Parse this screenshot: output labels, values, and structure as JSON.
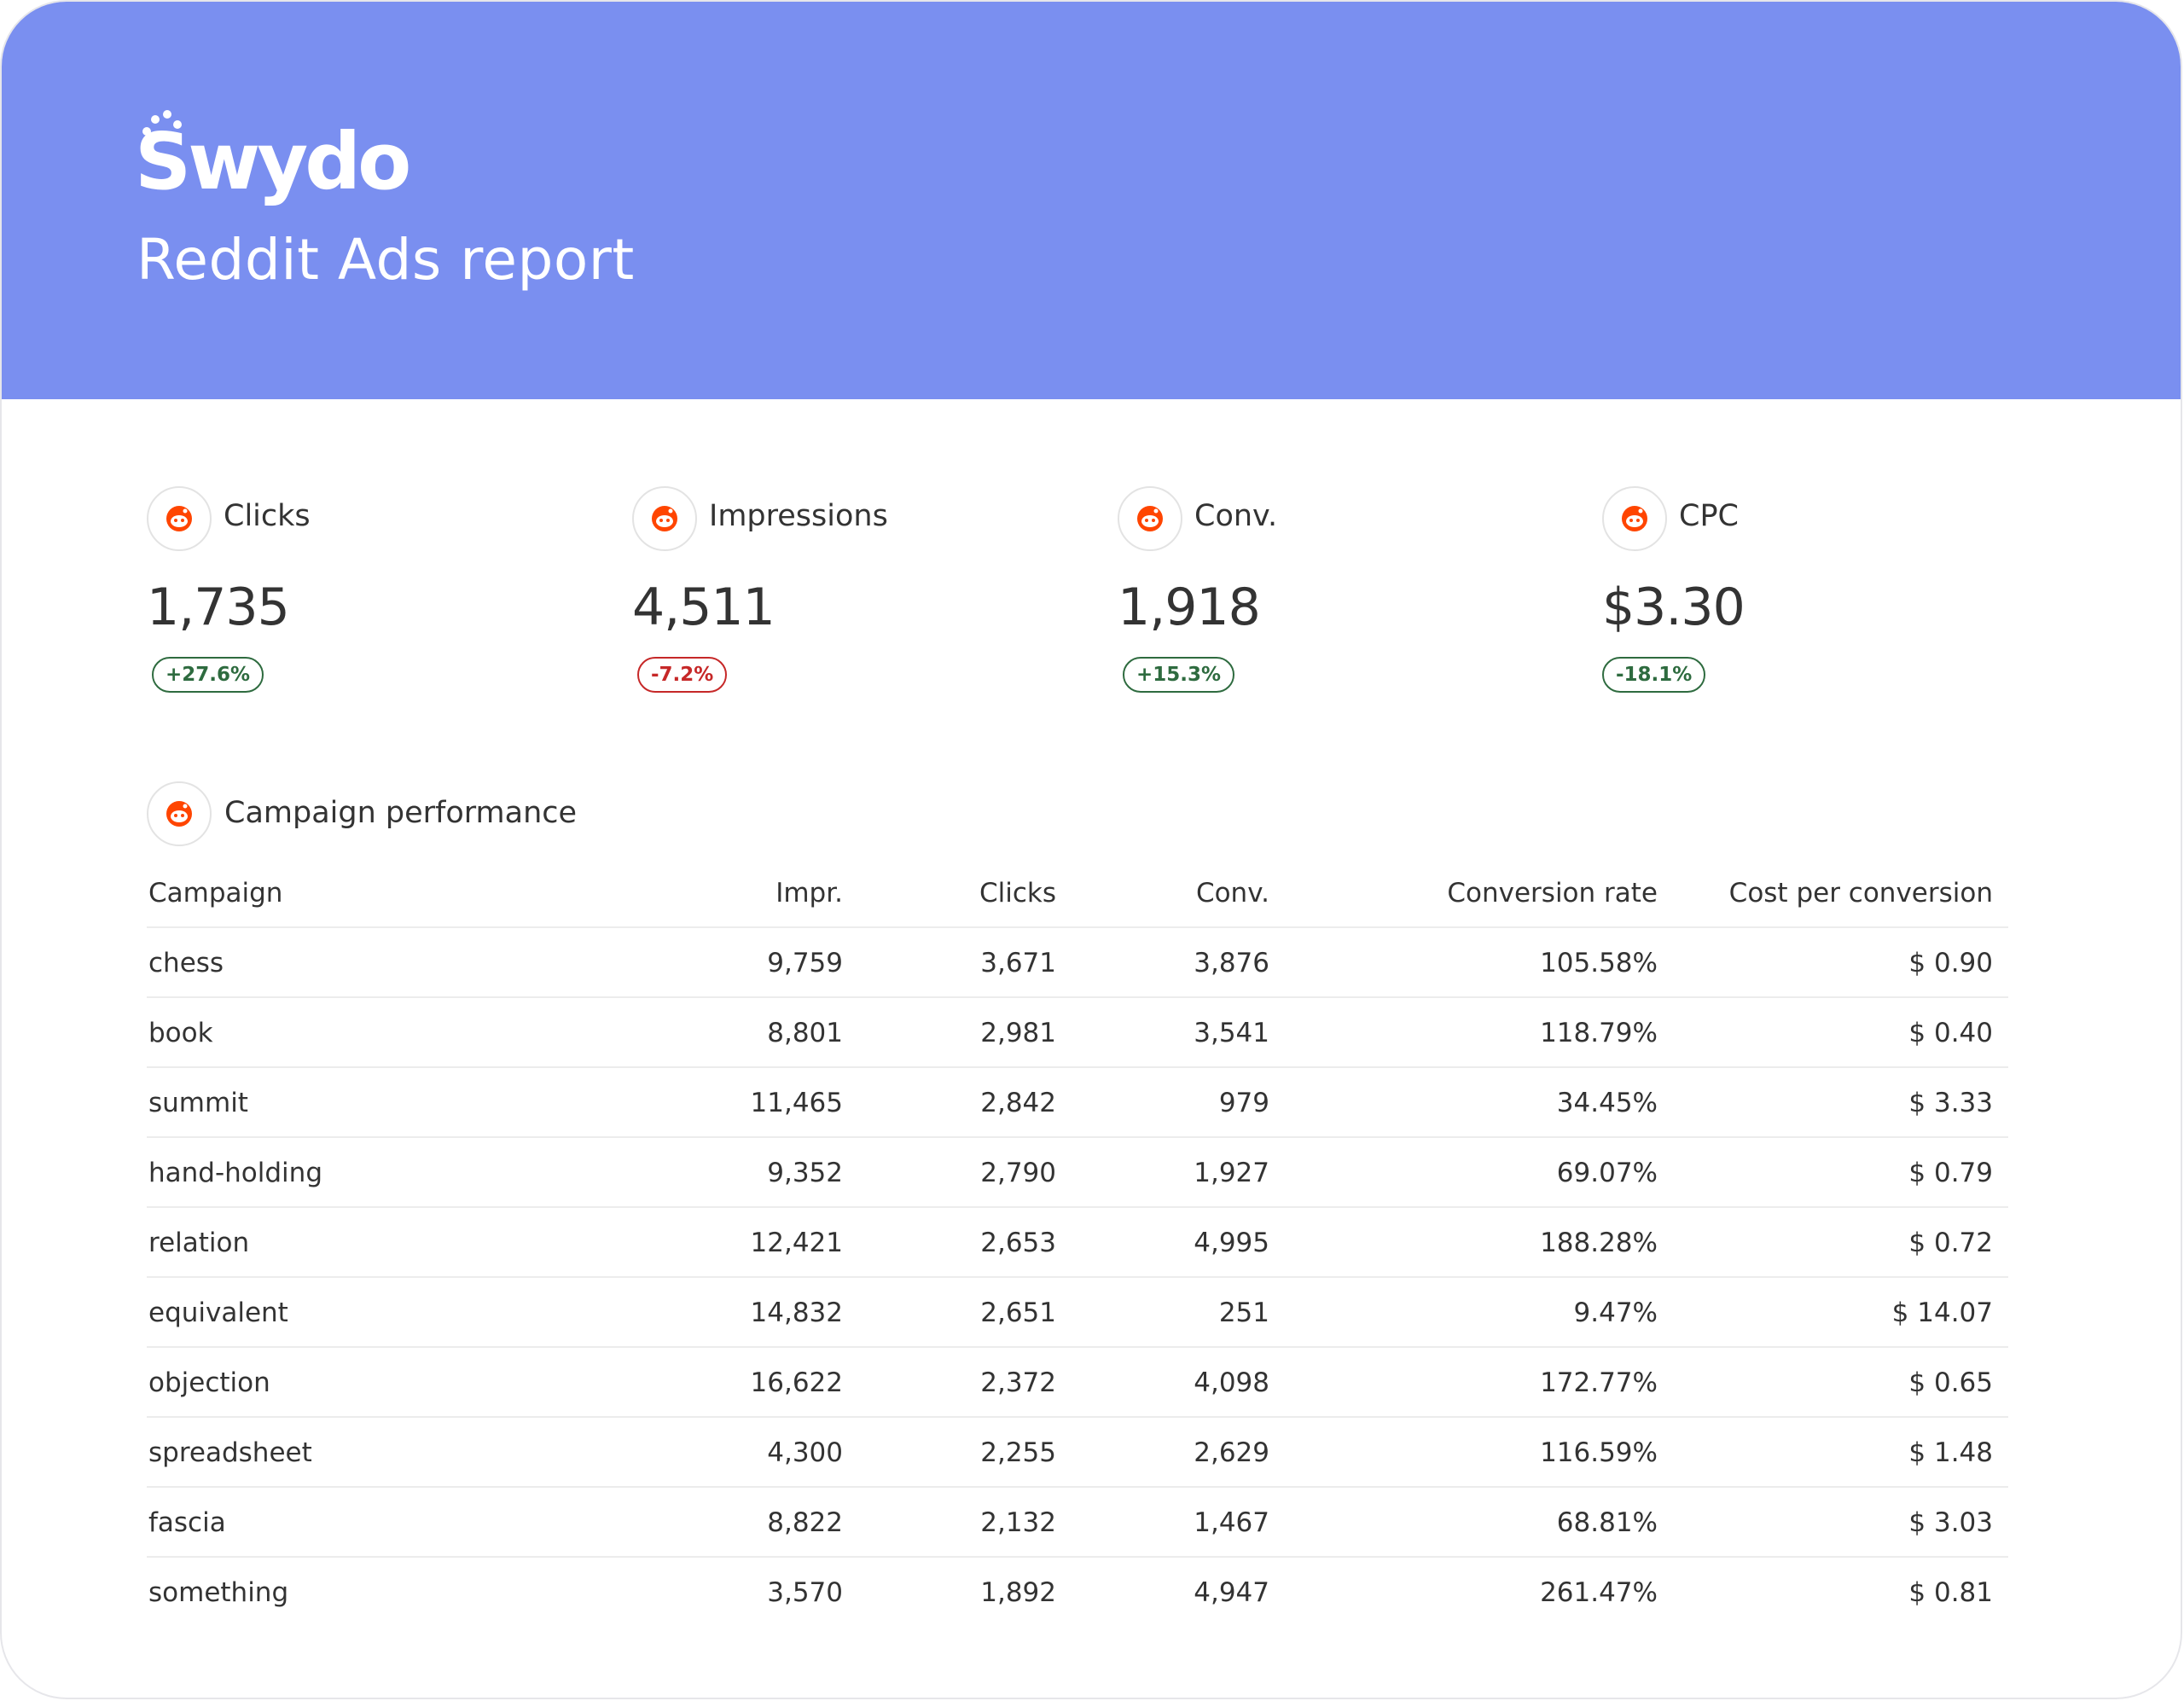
{
  "header": {
    "logo_text": "Swydo",
    "title": "Reddit Ads report",
    "background_color": "#7a8ff0"
  },
  "kpis": [
    {
      "icon": "reddit-icon",
      "label": "Clicks",
      "value": "1,735",
      "change": "+27.6%",
      "trend": "up"
    },
    {
      "icon": "reddit-icon",
      "label": "Impressions",
      "value": "4,511",
      "change": "-7.2%",
      "trend": "down"
    },
    {
      "icon": "reddit-icon",
      "label": "Conv.",
      "value": "1,918",
      "change": "+15.3%",
      "trend": "up"
    },
    {
      "icon": "reddit-icon",
      "label": "CPC",
      "value": "$3.30",
      "change": "-18.1%",
      "trend": "up"
    }
  ],
  "campaign_table": {
    "icon": "reddit-icon",
    "title": "Campaign performance",
    "columns": [
      "Campaign",
      "Impr.",
      "Clicks",
      "Conv.",
      "Conversion rate",
      "Cost per conversion"
    ],
    "rows": [
      [
        "chess",
        "9,759",
        "3,671",
        "3,876",
        "105.58%",
        "$ 0.90"
      ],
      [
        "book",
        "8,801",
        "2,981",
        "3,541",
        "118.79%",
        "$ 0.40"
      ],
      [
        "summit",
        "11,465",
        "2,842",
        "979",
        "34.45%",
        "$ 3.33"
      ],
      [
        "hand-holding",
        "9,352",
        "2,790",
        "1,927",
        "69.07%",
        "$ 0.79"
      ],
      [
        "relation",
        "12,421",
        "2,653",
        "4,995",
        "188.28%",
        "$ 0.72"
      ],
      [
        "equivalent",
        "14,832",
        "2,651",
        "251",
        "9.47%",
        "$ 14.07"
      ],
      [
        "objection",
        "16,622",
        "2,372",
        "4,098",
        "172.77%",
        "$ 0.65"
      ],
      [
        "spreadsheet",
        "4,300",
        "2,255",
        "2,629",
        "116.59%",
        "$ 1.48"
      ],
      [
        "fascia",
        "8,822",
        "2,132",
        "1,467",
        "68.81%",
        "$ 3.03"
      ],
      [
        "something",
        "3,570",
        "1,892",
        "4,947",
        "261.47%",
        "$ 0.81"
      ]
    ]
  },
  "colors": {
    "reddit_orange": "#ff4500",
    "positive": "#2e6b3f",
    "negative": "#c62828"
  }
}
